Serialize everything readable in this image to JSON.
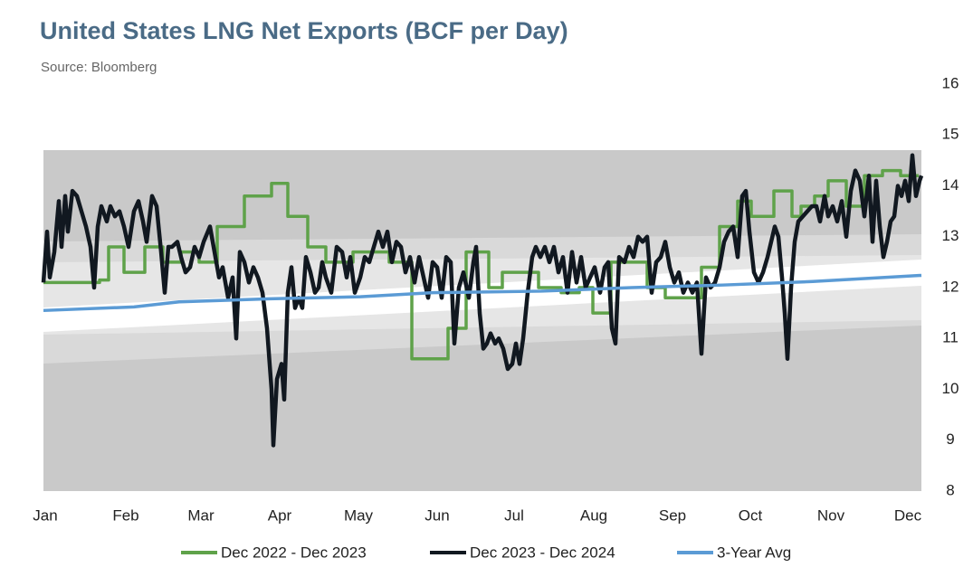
{
  "chart_data": {
    "type": "line",
    "title": "United States LNG Net Exports (BCF per Day)",
    "subtitle": "Source: Bloomberg",
    "xlim": [
      0,
      970
    ],
    "xticks": [
      {
        "value": 0,
        "label": "Jan"
      },
      {
        "value": 89,
        "label": "Feb"
      },
      {
        "value": 172,
        "label": "Mar"
      },
      {
        "value": 259,
        "label": "Apr"
      },
      {
        "value": 346,
        "label": "May"
      },
      {
        "value": 433,
        "label": "Jun"
      },
      {
        "value": 518,
        "label": "Jul"
      },
      {
        "value": 606,
        "label": "Aug"
      },
      {
        "value": 693,
        "label": "Sep"
      },
      {
        "value": 779,
        "label": "Oct"
      },
      {
        "value": 868,
        "label": "Nov"
      },
      {
        "value": 953,
        "label": "Dec"
      }
    ],
    "ylim": [
      8,
      16
    ],
    "yticks": [
      8,
      9,
      10,
      11,
      12,
      13,
      14,
      15,
      16
    ],
    "grid": false,
    "legend": "bottom",
    "series": [
      {
        "name": "Dec 2022 - Dec 2023",
        "color": "#5fa24a",
        "step": true,
        "x": [
          0,
          62,
          72,
          89,
          112,
          132,
          152,
          172,
          192,
          222,
          252,
          270,
          292,
          312,
          342,
          382,
          407,
          447,
          467,
          492,
          507,
          547,
          572,
          592,
          607,
          627,
          647,
          667,
          687,
          712,
          727,
          747,
          767,
          782,
          807,
          827,
          837,
          852,
          867,
          887,
          907,
          927,
          947,
          967
        ],
        "values": [
          12.1,
          12.15,
          12.8,
          12.3,
          12.8,
          12.5,
          12.7,
          12.5,
          13.2,
          13.8,
          14.05,
          13.4,
          12.8,
          12.5,
          12.7,
          12.5,
          10.6,
          11.2,
          12.7,
          12.0,
          12.3,
          12.0,
          11.9,
          12.0,
          11.5,
          12.5,
          12.5,
          12.0,
          11.8,
          11.8,
          12.4,
          13.2,
          13.7,
          13.4,
          13.9,
          13.4,
          13.6,
          13.8,
          14.1,
          13.6,
          14.2,
          14.3,
          14.2,
          14.2
        ]
      },
      {
        "name": "Dec 2023 - Dec 2024",
        "color": "#111820",
        "x": [
          0,
          4,
          7,
          12,
          17,
          20,
          24,
          27,
          32,
          37,
          42,
          47,
          52,
          56,
          60,
          64,
          70,
          74,
          79,
          84,
          89,
          94,
          100,
          105,
          110,
          114,
          120,
          125,
          130,
          134,
          138,
          142,
          148,
          152,
          157,
          162,
          167,
          172,
          177,
          184,
          189,
          194,
          198,
          204,
          209,
          213,
          217,
          222,
          227,
          232,
          237,
          242,
          247,
          252,
          254,
          258,
          263,
          266,
          270,
          274,
          278,
          282,
          286,
          290,
          295,
          300,
          304,
          308,
          312,
          318,
          324,
          330,
          335,
          339,
          344,
          350,
          355,
          360,
          365,
          370,
          375,
          380,
          385,
          390,
          395,
          400,
          405,
          410,
          415,
          420,
          425,
          430,
          435,
          440,
          445,
          450,
          454,
          459,
          464,
          470,
          475,
          478,
          482,
          486,
          490,
          494,
          499,
          503,
          508,
          513,
          518,
          522,
          526,
          530,
          535,
          540,
          544,
          549,
          554,
          559,
          564,
          569,
          574,
          579,
          584,
          589,
          594,
          599,
          604,
          609,
          615,
          620,
          624,
          628,
          632,
          636,
          642,
          647,
          652,
          657,
          662,
          667,
          672,
          677,
          682,
          687,
          692,
          697,
          702,
          707,
          712,
          717,
          722,
          727,
          732,
          737,
          742,
          747,
          752,
          757,
          762,
          767,
          772,
          776,
          780,
          785,
          790,
          795,
          800,
          804,
          808,
          812,
          816,
          819,
          822,
          826,
          830,
          834,
          839,
          844,
          849,
          854,
          858,
          863,
          867,
          872,
          877,
          882,
          887,
          892,
          897,
          902,
          907,
          912,
          916,
          920,
          924,
          928,
          932,
          936,
          940,
          944,
          948,
          952,
          956,
          960,
          964,
          968,
          970
        ],
        "values": [
          12.1,
          13.1,
          12.2,
          12.7,
          13.7,
          12.8,
          13.8,
          13.1,
          13.9,
          13.8,
          13.5,
          13.2,
          12.8,
          12.0,
          13.2,
          13.6,
          13.3,
          13.6,
          13.4,
          13.5,
          13.2,
          12.8,
          13.5,
          13.7,
          13.3,
          12.9,
          13.8,
          13.6,
          12.7,
          11.9,
          12.8,
          12.8,
          12.9,
          12.6,
          12.3,
          12.4,
          12.8,
          12.6,
          12.9,
          13.2,
          12.7,
          12.2,
          12.4,
          11.8,
          12.2,
          11.0,
          12.7,
          12.5,
          12.1,
          12.4,
          12.2,
          11.9,
          11.2,
          10.0,
          8.9,
          10.2,
          10.5,
          9.8,
          11.9,
          12.4,
          11.6,
          11.8,
          11.6,
          12.6,
          12.3,
          11.9,
          12.0,
          12.5,
          12.2,
          11.9,
          12.8,
          12.7,
          12.2,
          12.6,
          11.9,
          12.2,
          12.6,
          12.5,
          12.8,
          13.1,
          12.8,
          13.1,
          12.5,
          12.9,
          12.8,
          12.3,
          12.6,
          12.1,
          12.6,
          12.2,
          11.8,
          12.5,
          12.4,
          11.8,
          12.6,
          12.5,
          10.9,
          12.0,
          12.3,
          11.8,
          12.5,
          12.8,
          11.5,
          10.8,
          10.9,
          11.1,
          10.9,
          11.0,
          10.8,
          10.4,
          10.5,
          10.9,
          10.5,
          11.0,
          11.9,
          12.6,
          12.8,
          12.6,
          12.8,
          12.5,
          12.8,
          12.3,
          12.6,
          11.9,
          12.7,
          12.1,
          12.6,
          12.0,
          12.2,
          12.4,
          11.9,
          12.4,
          12.5,
          11.2,
          10.9,
          12.6,
          12.5,
          12.8,
          12.6,
          13.0,
          12.9,
          13.0,
          11.9,
          12.5,
          12.6,
          12.9,
          12.4,
          12.1,
          12.3,
          11.9,
          12.1,
          11.9,
          12.1,
          10.7,
          12.2,
          12.0,
          12.1,
          12.4,
          12.9,
          13.1,
          13.2,
          12.6,
          13.8,
          13.9,
          13.1,
          12.3,
          12.1,
          12.3,
          12.6,
          12.9,
          13.2,
          13.0,
          12.2,
          11.5,
          10.6,
          12.0,
          12.9,
          13.3,
          13.4,
          13.5,
          13.6,
          13.6,
          13.3,
          13.8,
          13.4,
          13.6,
          13.3,
          13.7,
          13.0,
          13.9,
          14.3,
          14.1,
          13.4,
          14.2,
          12.9,
          14.1,
          13.2,
          12.6,
          12.9,
          13.3,
          13.4,
          14.0,
          13.8,
          14.1,
          13.7,
          14.6,
          13.8,
          14.1,
          14.2
        ]
      },
      {
        "name": "3-Year Avg",
        "color": "#5b9bd5",
        "x": [
          0,
          100,
          150,
          250,
          350,
          430,
          550,
          650,
          750,
          850,
          970
        ],
        "values": [
          11.55,
          11.62,
          11.72,
          11.78,
          11.82,
          11.9,
          11.93,
          12.0,
          12.05,
          12.12,
          12.24
        ]
      }
    ]
  }
}
